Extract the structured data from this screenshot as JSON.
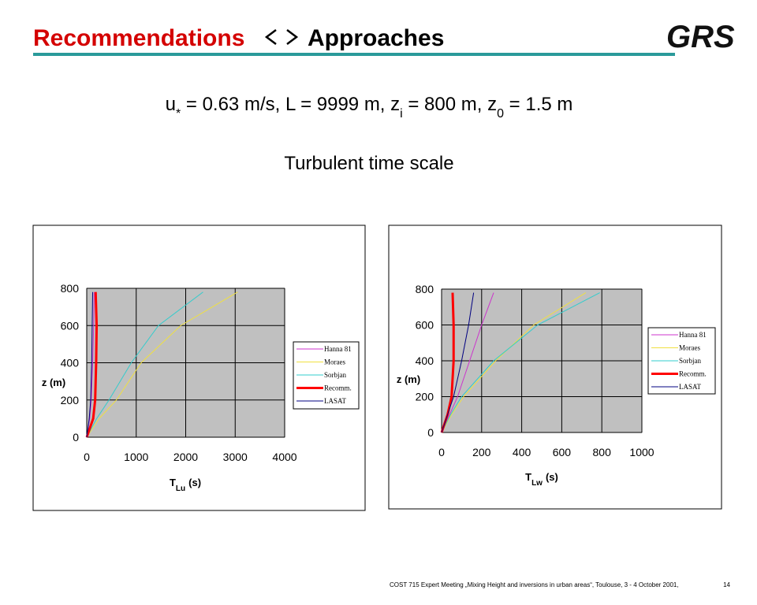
{
  "header": {
    "title_red": "Recommendations",
    "title_black": "Approaches",
    "logo": "GRS"
  },
  "parameters": [
    {
      "text": "u"
    },
    {
      "sub": "*"
    },
    {
      "text": " = 0.63 m/s, L = 9999 m, z"
    },
    {
      "sub": "i"
    },
    {
      "text": " = 800 m, z"
    },
    {
      "sub": "0"
    },
    {
      "text": " = 1.5 m"
    }
  ],
  "section_title": "Turbulent time scale",
  "footer": {
    "text": "COST 715 Expert Meeting „Mixing Height and inversions in urban areas“, Toulouse, 3 - 4 October 2001,",
    "page": "14"
  },
  "chart_data": [
    {
      "type": "line",
      "xlabel": "T",
      "xlabel_sub": "Lu",
      "xlabel_unit": "(s)",
      "ylabel": "z (m)",
      "xlim": [
        0,
        4000
      ],
      "xticks": [
        0,
        1000,
        2000,
        3000,
        4000
      ],
      "ylim": [
        0,
        800
      ],
      "yticks": [
        0,
        200,
        400,
        600,
        800
      ],
      "grid": true,
      "series": [
        {
          "name": "Hanna 81",
          "color": "#cc33cc",
          "width": 1,
          "x": [
            0,
            60,
            90,
            120,
            140,
            150
          ],
          "values": [
            0,
            100,
            200,
            400,
            600,
            780
          ]
        },
        {
          "name": "Moraes",
          "color": "#f0e040",
          "width": 1,
          "x": [
            0,
            250,
            600,
            1100,
            1900,
            3050
          ],
          "values": [
            0,
            100,
            200,
            400,
            600,
            780
          ]
        },
        {
          "name": "Sorbjan",
          "color": "#33cccc",
          "width": 1,
          "x": [
            0,
            200,
            450,
            900,
            1450,
            2350
          ],
          "values": [
            0,
            100,
            200,
            400,
            600,
            780
          ]
        },
        {
          "name": "Recomm.",
          "color": "#ff0000",
          "width": 3,
          "x": [
            0,
            130,
            170,
            190,
            200,
            180
          ],
          "values": [
            0,
            100,
            200,
            400,
            600,
            780
          ]
        },
        {
          "name": "LASAT",
          "color": "#000080",
          "width": 1,
          "x": [
            0,
            50,
            80,
            100,
            110,
            120
          ],
          "values": [
            0,
            100,
            200,
            400,
            600,
            780
          ]
        }
      ]
    },
    {
      "type": "line",
      "xlabel": "T",
      "xlabel_sub": "Lw",
      "xlabel_unit": "(s)",
      "ylabel": "z (m)",
      "xlim": [
        0,
        1000
      ],
      "xticks": [
        0,
        200,
        400,
        600,
        800,
        1000
      ],
      "ylim": [
        0,
        800
      ],
      "yticks": [
        0,
        200,
        400,
        600,
        800
      ],
      "grid": true,
      "series": [
        {
          "name": "Hanna 81",
          "color": "#cc33cc",
          "width": 1,
          "x": [
            0,
            40,
            80,
            140,
            200,
            260
          ],
          "values": [
            0,
            100,
            200,
            400,
            600,
            780
          ]
        },
        {
          "name": "Moraes",
          "color": "#f0e040",
          "width": 1,
          "x": [
            0,
            50,
            110,
            270,
            460,
            720
          ],
          "values": [
            0,
            100,
            200,
            400,
            600,
            780
          ]
        },
        {
          "name": "Sorbjan",
          "color": "#33cccc",
          "width": 1,
          "x": [
            0,
            45,
            100,
            260,
            480,
            790
          ],
          "values": [
            0,
            100,
            200,
            400,
            600,
            780
          ]
        },
        {
          "name": "Recomm.",
          "color": "#ff0000",
          "width": 3,
          "x": [
            0,
            30,
            50,
            60,
            60,
            55
          ],
          "values": [
            0,
            100,
            200,
            400,
            600,
            780
          ]
        },
        {
          "name": "LASAT",
          "color": "#000080",
          "width": 1,
          "x": [
            0,
            30,
            60,
            100,
            135,
            160
          ],
          "values": [
            0,
            100,
            200,
            400,
            600,
            780
          ]
        }
      ]
    }
  ]
}
